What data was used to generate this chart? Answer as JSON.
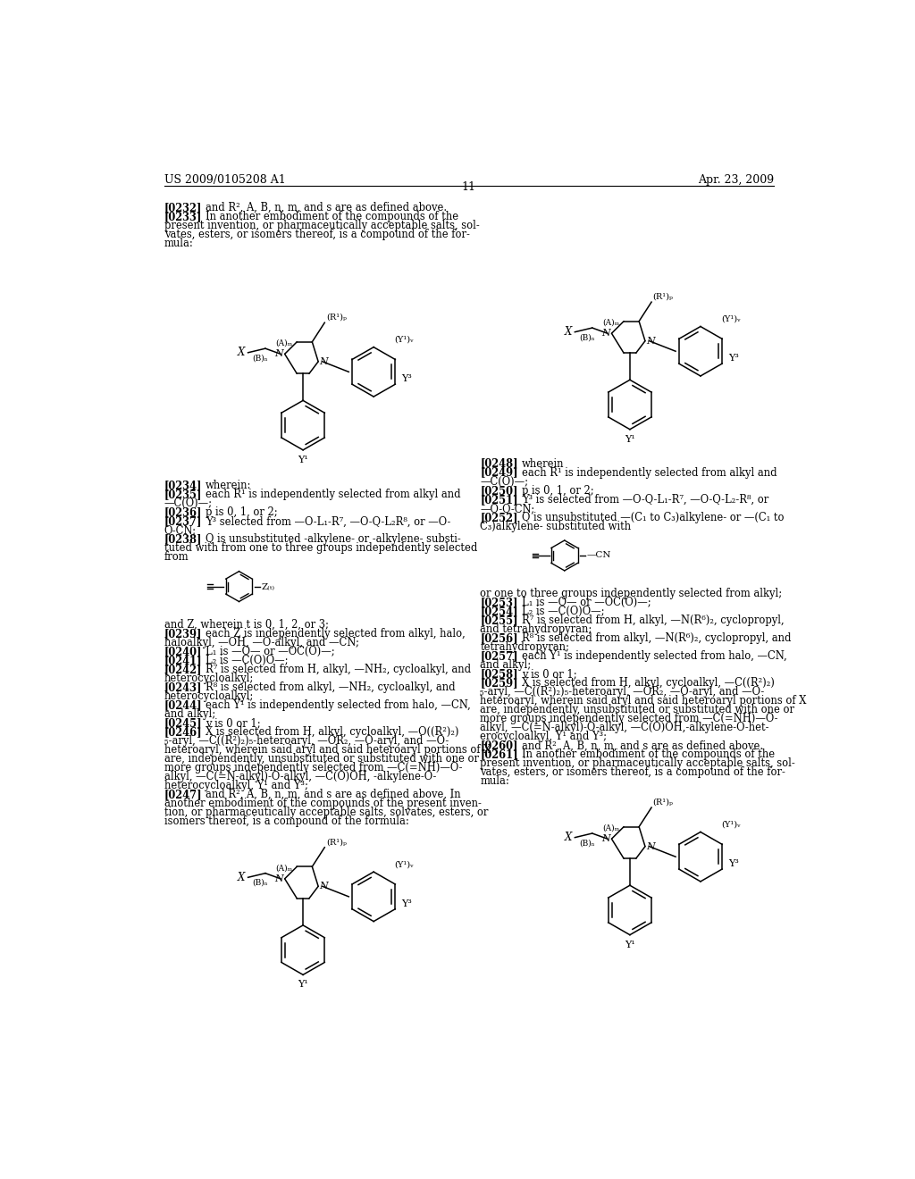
{
  "background": "#ffffff",
  "header_left": "US 2009/0105208 A1",
  "header_right": "Apr. 23, 2009",
  "page_number": "11"
}
